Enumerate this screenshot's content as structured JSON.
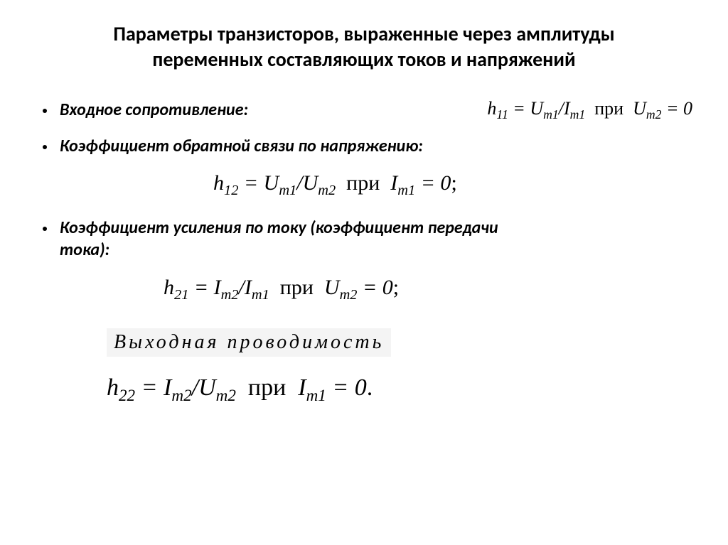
{
  "title": "Параметры транзисторов, выраженные через амплитуды переменных составляющих токов и напряжений",
  "items": {
    "input_resistance": {
      "label": "Входное сопротивление:",
      "formula_html": "h<span class='sub'>11</span> = U<span class='sub'>m1</span>/I<span class='sub'>m1</span>&nbsp;&nbsp;<span class='upright'>при</span>&nbsp;&nbsp;U<span class='sub'>m2</span> = 0"
    },
    "feedback": {
      "label": "Коэффициент обратной связи по напряжению:",
      "formula_html": "h<span class='sub'>12</span> = U<span class='sub'>m1</span>/U<span class='sub'>m2</span>&nbsp;&nbsp;<span class='upright'>при</span>&nbsp;&nbsp;I<span class='sub'>m1</span> = 0<span class='upright'>;</span>"
    },
    "current_gain": {
      "label": "Коэффициент усиления по току (коэффициент передачи тока):",
      "formula_html": "h<span class='sub'>21</span> = I<span class='sub'>m2</span>/I<span class='sub'>m1</span>&nbsp;&nbsp;<span class='upright'>при</span>&nbsp;&nbsp;U<span class='sub'>m2</span> = 0<span class='upright'>;</span>"
    },
    "output_conductance": {
      "label": "Выходная  проводимость",
      "formula_html": "h<span class='sub'>22</span> = I<span class='sub'>m2</span>/U<span class='sub'>m2</span>&nbsp;&nbsp;<span class='upright'>при</span>&nbsp;&nbsp;I<span class='sub'>m1</span> = 0<span class='upright'>.</span>"
    }
  },
  "colors": {
    "background": "#ffffff",
    "text": "#000000",
    "label_bg": "#f4f4f4"
  },
  "typography": {
    "title_fontsize": 28,
    "bullet_fontsize": 24,
    "formula_fontsize": 30,
    "last_formula_fontsize": 34,
    "title_weight": "bold",
    "bullet_weight": "bold",
    "bullet_style": "italic",
    "formula_family": "Times New Roman"
  }
}
